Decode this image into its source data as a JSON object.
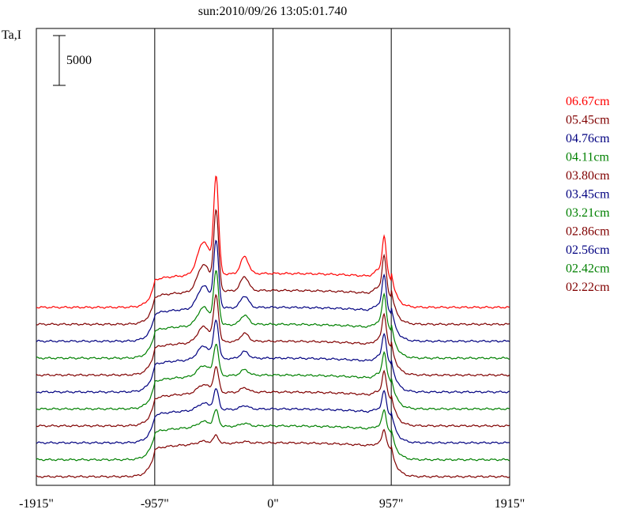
{
  "chart_data": {
    "type": "line",
    "title": "sun:2010/09/26 13:05:01.740",
    "ylabel": "Ta,I",
    "scale_bar_label": "5000",
    "xlim": [
      -1915,
      1915
    ],
    "x_ticks": [
      {
        "value": -1915,
        "label": "-1915\""
      },
      {
        "value": -957,
        "label": "-957\""
      },
      {
        "value": 0,
        "label": "0\""
      },
      {
        "value": 957,
        "label": "957\""
      },
      {
        "value": 1915,
        "label": "1915\""
      }
    ],
    "vertical_reference_lines": [
      -957,
      0,
      957
    ],
    "legend_position": "right",
    "series": [
      {
        "name": "06.67cm",
        "color": "#ff0000",
        "offset": 17000,
        "peak_left": 9500,
        "peak_right": 3500
      },
      {
        "name": "05.45cm",
        "color": "#800000",
        "offset": 15300,
        "peak_left": 7800,
        "peak_right": 3300
      },
      {
        "name": "04.76cm",
        "color": "#000080",
        "offset": 13600,
        "peak_left": 6500,
        "peak_right": 3100
      },
      {
        "name": "04.11cm",
        "color": "#008000",
        "offset": 11900,
        "peak_left": 5200,
        "peak_right": 2900
      },
      {
        "name": "03.80cm",
        "color": "#800000",
        "offset": 10200,
        "peak_left": 4500,
        "peak_right": 2700
      },
      {
        "name": "03.45cm",
        "color": "#000080",
        "offset": 8500,
        "peak_left": 3800,
        "peak_right": 2500
      },
      {
        "name": "03.21cm",
        "color": "#008000",
        "offset": 6800,
        "peak_left": 3100,
        "peak_right": 2300
      },
      {
        "name": "02.86cm",
        "color": "#800000",
        "offset": 5100,
        "peak_left": 2500,
        "peak_right": 2100
      },
      {
        "name": "02.56cm",
        "color": "#000080",
        "offset": 3400,
        "peak_left": 2000,
        "peak_right": 1900
      },
      {
        "name": "02.42cm",
        "color": "#008000",
        "offset": 1700,
        "peak_left": 1600,
        "peak_right": 1700
      },
      {
        "name": "02.22cm",
        "color": "#800000",
        "offset": 0,
        "peak_left": 800,
        "peak_right": 1500
      }
    ]
  }
}
